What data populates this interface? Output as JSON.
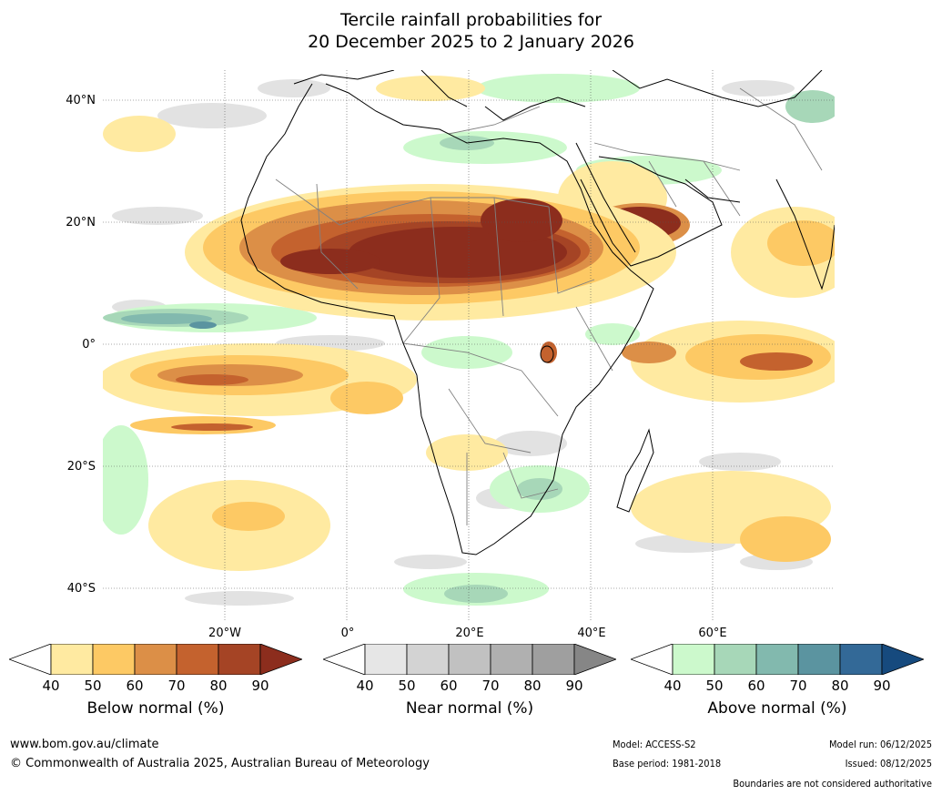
{
  "title": {
    "line1": "Tercile rainfall probabilities for",
    "line2": "20 December 2025 to 2 January 2026"
  },
  "map": {
    "lat_labels": [
      "40°N",
      "20°N",
      "0°",
      "20°S",
      "40°S"
    ],
    "lon_labels": [
      "20°W",
      "0°",
      "20°E",
      "40°E",
      "60°E"
    ]
  },
  "colorbars": [
    {
      "label": "Below normal (%)",
      "ticks": [
        "40",
        "50",
        "60",
        "70",
        "80",
        "90"
      ],
      "colors": [
        "#ffeaa1",
        "#fdc964",
        "#dc8f47",
        "#c4622e",
        "#a54425",
        "#8c2d1d"
      ]
    },
    {
      "label": "Near normal (%)",
      "ticks": [
        "40",
        "50",
        "60",
        "70",
        "80",
        "90"
      ],
      "colors": [
        "#e6e6e6",
        "#d3d3d3",
        "#c1c1c1",
        "#b0b0b0",
        "#9f9f9f",
        "#868686"
      ]
    },
    {
      "label": "Above normal (%)",
      "ticks": [
        "40",
        "50",
        "60",
        "70",
        "80",
        "90"
      ],
      "colors": [
        "#ccf9cc",
        "#a7d7b8",
        "#82b9ae",
        "#5b94a0",
        "#336997",
        "#164a7e"
      ]
    }
  ],
  "footer": {
    "website": "www.bom.gov.au/climate",
    "copyright": "© Commonwealth of Australia 2025, Australian Bureau of Meteorology",
    "model": "Model: ACCESS-S2",
    "base_period": "Base period: 1981-2018",
    "model_run": "Model run: 06/12/2025",
    "issued": "Issued: 08/12/2025",
    "disclaimer": "Boundaries are not considered authoritative"
  }
}
